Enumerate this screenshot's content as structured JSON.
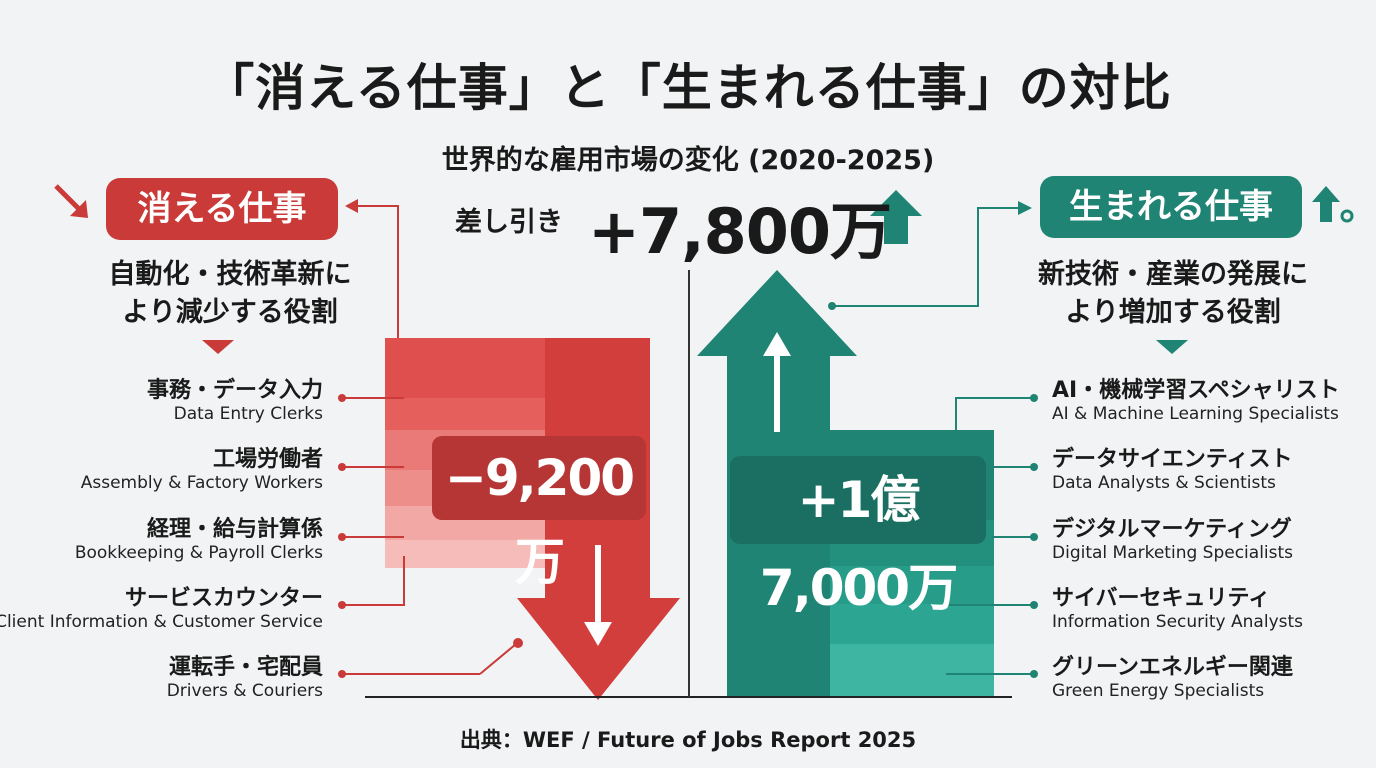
{
  "title": "「消える仕事」と「生まれる仕事」の対比",
  "subtitle": "世界的な雇用市場の変化 (2020-2025)",
  "net": {
    "label": "差し引き",
    "value": "+7,800万"
  },
  "losing": {
    "heading": "消える仕事",
    "description": [
      "自動化・技術革新に",
      "より減少する役割"
    ],
    "total": "−9,200万",
    "items": [
      {
        "jp": "事務・データ入力",
        "en": "Data Entry Clerks"
      },
      {
        "jp": "工場労働者",
        "en": "Assembly & Factory Workers"
      },
      {
        "jp": "経理・給与計算係",
        "en": "Bookkeeping & Payroll Clerks"
      },
      {
        "jp": "サービスカウンター",
        "en": "Client Information & Customer Service"
      },
      {
        "jp": "運転手・宅配員",
        "en": "Drivers & Couriers"
      }
    ]
  },
  "growing": {
    "heading": "生まれる仕事",
    "description": [
      "新技術・産業の発展に",
      "より増加する役割"
    ],
    "total": "+1億7,000万",
    "items": [
      {
        "jp": "AI・機械学習スペシャリスト",
        "en": "AI & Machine Learning Specialists"
      },
      {
        "jp": "データサイエンティスト",
        "en": "Data Analysts & Scientists"
      },
      {
        "jp": "デジタルマーケティング",
        "en": "Digital Marketing Specialists"
      },
      {
        "jp": "サイバーセキュリティ",
        "en": "Information Security Analysts"
      },
      {
        "jp": "グリーンエネルギー関連",
        "en": "Green Energy Specialists"
      }
    ]
  },
  "chart_data": {
    "type": "bar",
    "categories": [
      "消える仕事",
      "生まれる仕事"
    ],
    "values": [
      -92000000,
      170000000
    ],
    "net": 78000000
  },
  "source": "出典：WEF / Future of Jobs Report 2025",
  "colors": {
    "red": "#c93a38",
    "teal": "#1f8473",
    "background": "#f1f3f4"
  }
}
